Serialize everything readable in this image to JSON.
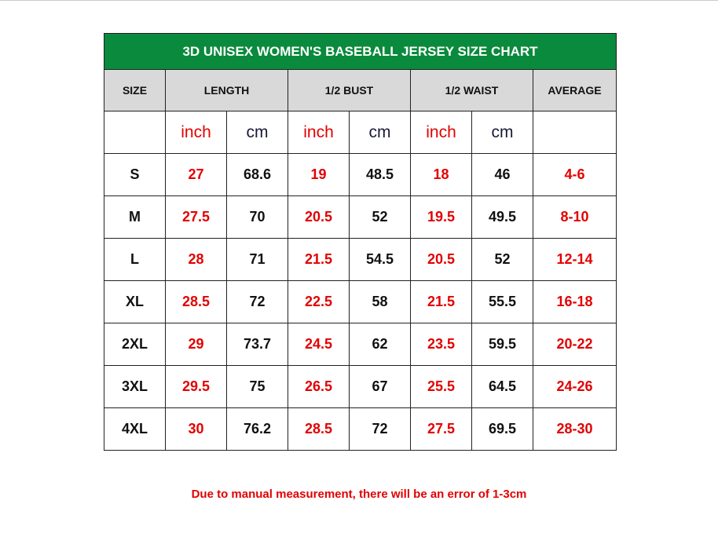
{
  "title": "3D UNISEX WOMEN'S BASEBALL JERSEY SIZE CHART",
  "headers": [
    "SIZE",
    "LENGTH",
    "1/2 BUST",
    "1/2 WAIST",
    "AVERAGE"
  ],
  "units": [
    "inch",
    "cm",
    "inch",
    "cm",
    "inch",
    "cm"
  ],
  "rows": [
    [
      "S",
      27,
      68.6,
      19,
      48.5,
      18,
      46,
      "4-6"
    ],
    [
      "M",
      27.5,
      70,
      20.5,
      52,
      19.5,
      49.5,
      "8-10"
    ],
    [
      "L",
      28,
      71,
      21.5,
      54.5,
      20.5,
      52,
      "12-14"
    ],
    [
      "XL",
      28.5,
      72,
      22.5,
      58,
      21.5,
      55.5,
      "16-18"
    ],
    [
      "2XL",
      29,
      73.7,
      24.5,
      62,
      23.5,
      59.5,
      "20-22"
    ],
    [
      "3XL",
      29.5,
      75,
      26.5,
      67,
      25.5,
      64.5,
      "24-26"
    ],
    [
      "4XL",
      30,
      76.2,
      28.5,
      72,
      27.5,
      69.5,
      "28-30"
    ]
  ],
  "note": "Due to manual measurement, there will be an error of 1-3cm"
}
